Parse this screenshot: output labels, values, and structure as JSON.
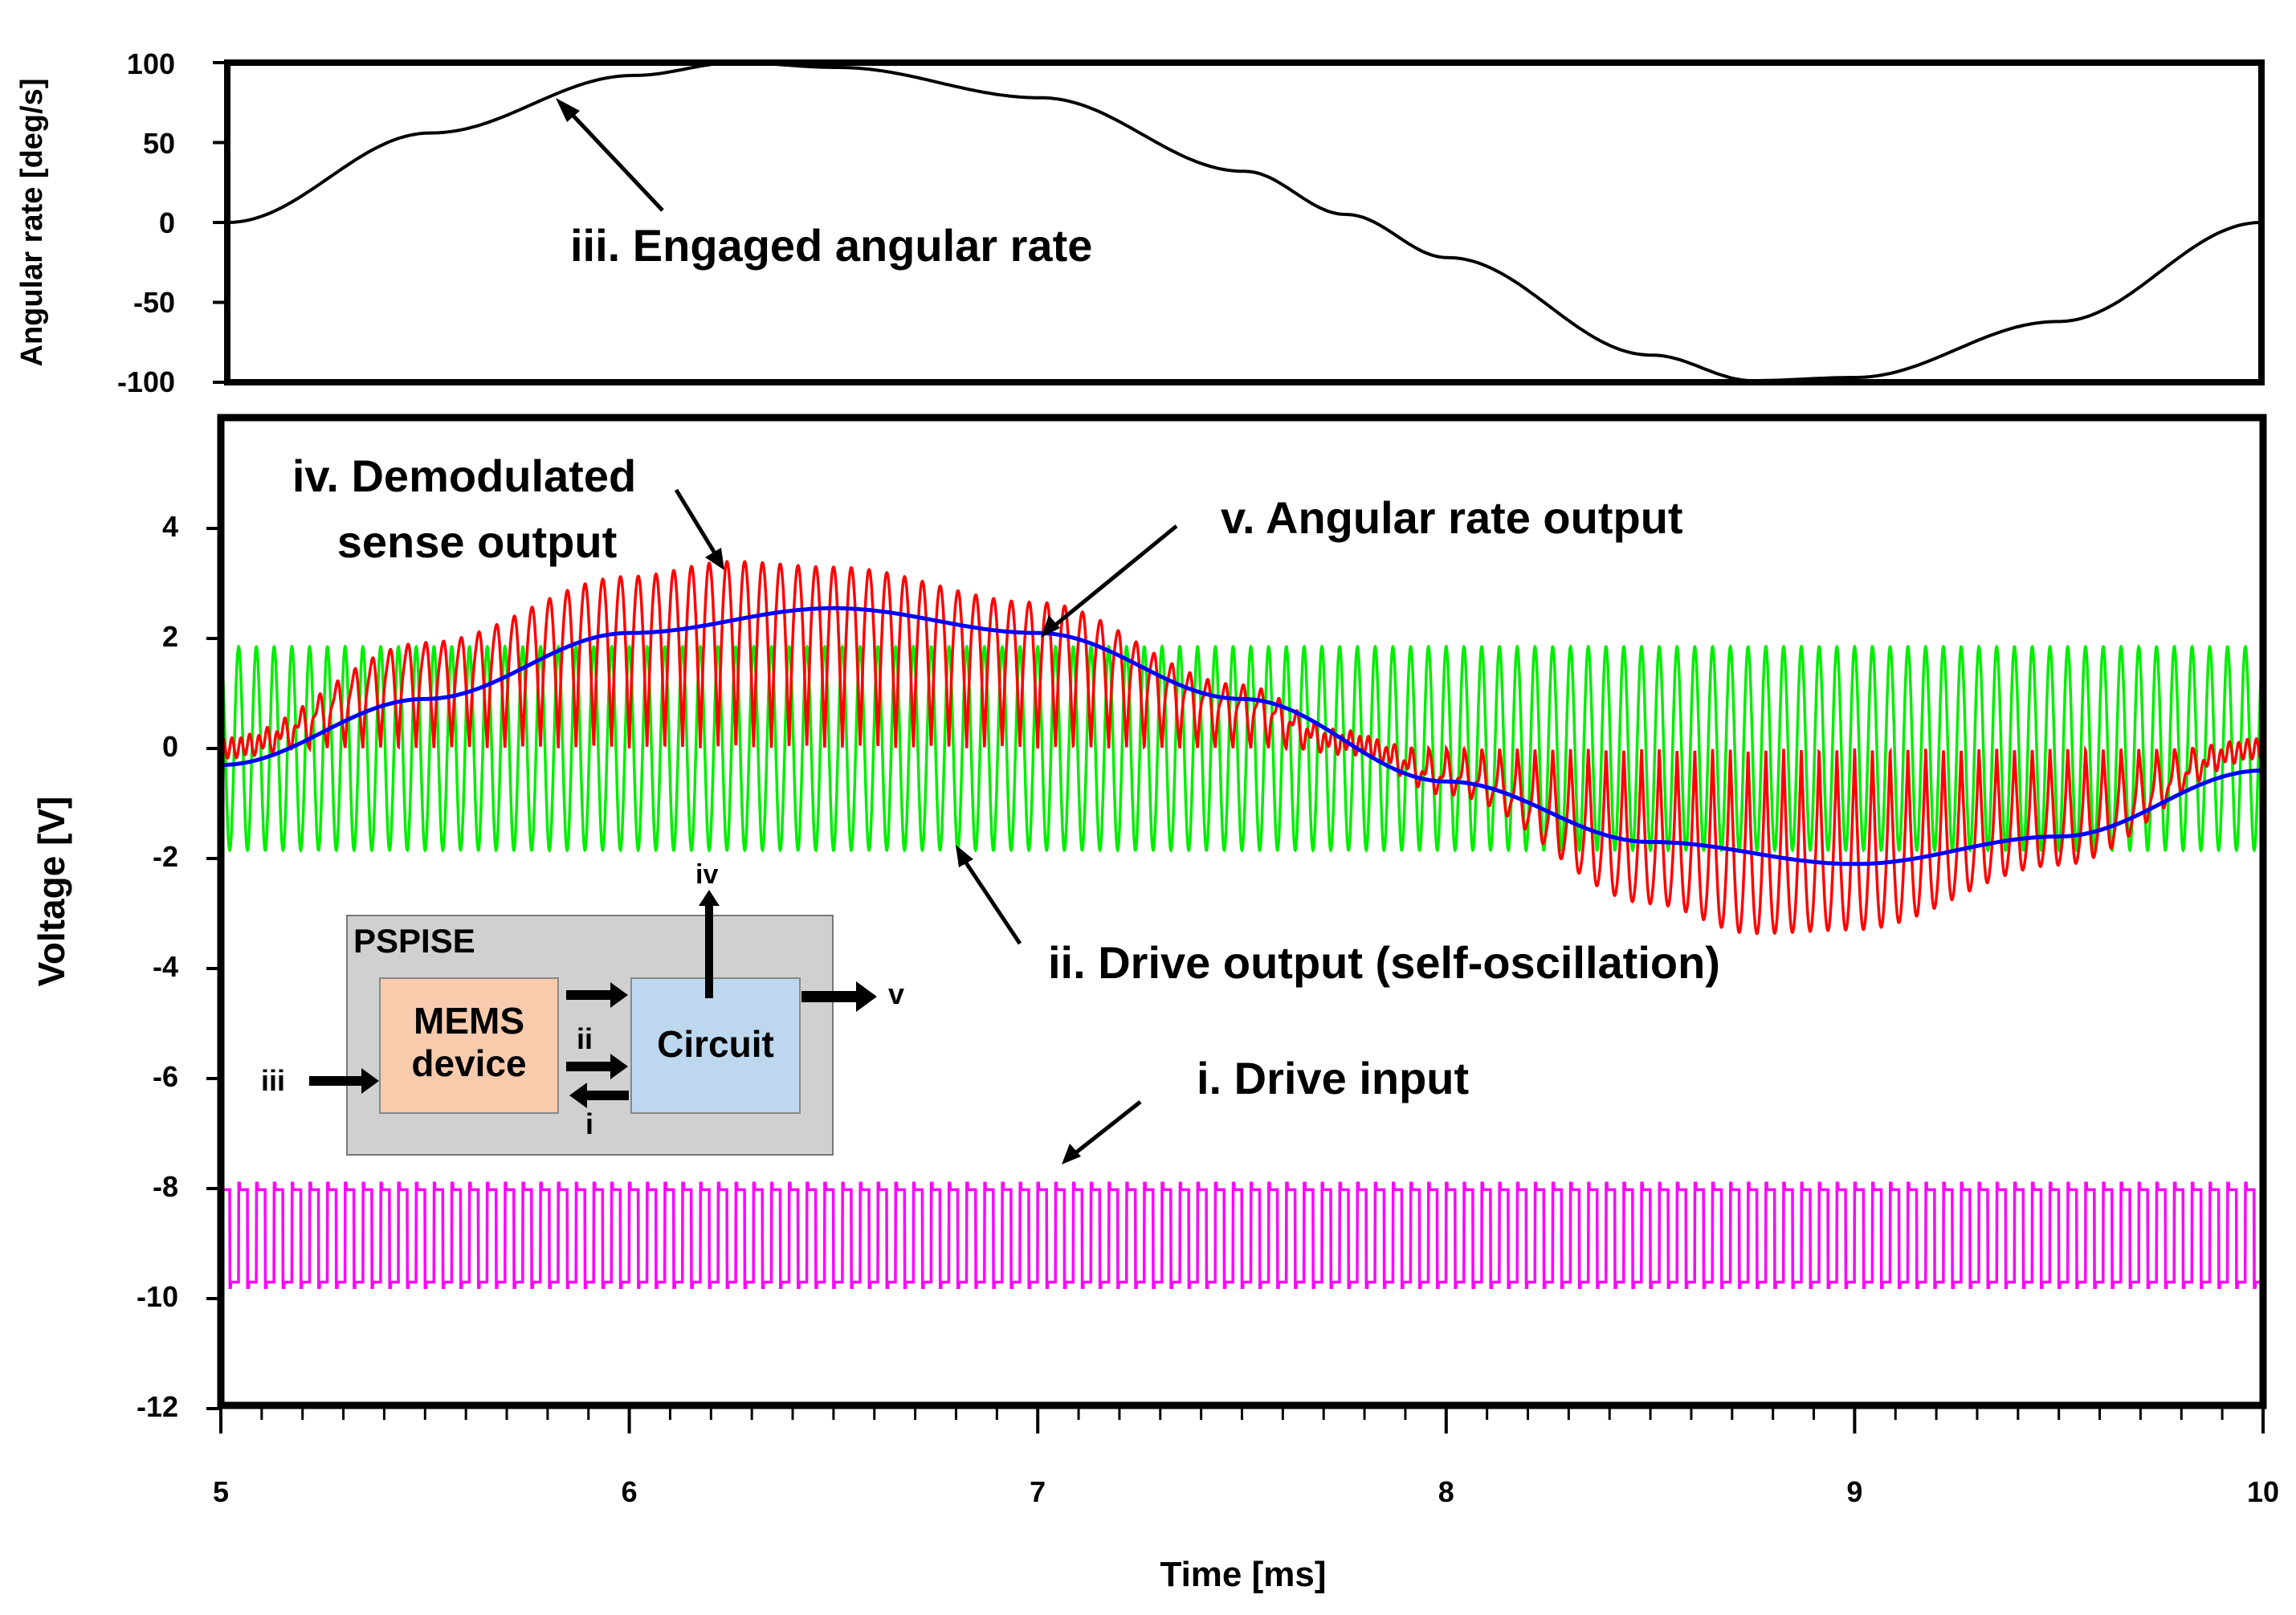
{
  "chart_data": [
    {
      "type": "line",
      "panel": "top",
      "ylabel": "Angular rate [deg/s]",
      "ylim": [
        -100,
        100
      ],
      "yticks": [
        "100",
        "50",
        "0",
        "-50",
        "-100"
      ],
      "xlim": [
        5,
        10
      ],
      "series": [
        {
          "name": "iii. Engaged angular rate",
          "color": "#000000",
          "x": [
            5.0,
            5.5,
            6.0,
            6.25,
            6.5,
            7.0,
            7.5,
            7.75,
            8.0,
            8.5,
            8.75,
            9.0,
            9.5,
            10.0
          ],
          "y": [
            0,
            56,
            92,
            100,
            97,
            78,
            32,
            5,
            -22,
            -83,
            -99,
            -97,
            -62,
            0
          ]
        }
      ],
      "annotations": [
        {
          "text": "iii. Engaged angular rate"
        }
      ]
    },
    {
      "type": "line",
      "panel": "bottom",
      "xlabel": "Time [ms]",
      "ylabel": "Voltage [V]",
      "xlim": [
        5,
        10
      ],
      "ylim": [
        -12,
        6
      ],
      "xticks": [
        "5",
        "6",
        "7",
        "8",
        "9",
        "10"
      ],
      "yticks": [
        "4",
        "2",
        "0",
        "-2",
        "-4",
        "-6",
        "-8",
        "-10",
        "-12"
      ],
      "series": [
        {
          "name": "i. Drive input",
          "color": "#ff00ff",
          "kind": "square-oscillation",
          "frequency_cycles_per_ms": 23,
          "low": -9.8,
          "high": -7.9
        },
        {
          "name": "ii. Drive output (self-oscillation)",
          "color": "#00ee00",
          "kind": "sine-oscillation",
          "frequency_cycles_per_ms": 23,
          "amplitude": 1.85,
          "offset": 0
        },
        {
          "name": "iv. Demodulated sense output",
          "color": "#ff0000",
          "kind": "rectified-envelope",
          "frequency_cycles_per_ms": 23,
          "peak_positive": 3.4,
          "peak_negative": -3.4
        },
        {
          "name": "v. Angular rate output",
          "color": "#0000ff",
          "x": [
            5.0,
            5.5,
            6.0,
            6.5,
            7.0,
            7.5,
            8.0,
            8.5,
            9.0,
            9.5,
            10.0
          ],
          "y": [
            -0.3,
            0.9,
            2.1,
            2.55,
            2.1,
            0.9,
            -0.6,
            -1.7,
            -2.1,
            -1.6,
            -0.4
          ]
        }
      ],
      "annotations": [
        {
          "text": "iv. Demodulated"
        },
        {
          "text": "sense output"
        },
        {
          "text": "v. Angular rate output"
        },
        {
          "text": "ii. Drive output (self-oscillation)"
        },
        {
          "text": "i. Drive input"
        }
      ]
    }
  ],
  "inset": {
    "title": "PSPISE",
    "mems_line1": "MEMS",
    "mems_line2": "device",
    "circuit": "Circuit",
    "label_i": "i",
    "label_ii": "ii",
    "label_iii": "iii",
    "label_iv": "iv",
    "label_v": "v",
    "colors": {
      "frame": "#d0d0d0",
      "mems": "#f8cbad",
      "circuit": "#bdd7ee"
    }
  }
}
